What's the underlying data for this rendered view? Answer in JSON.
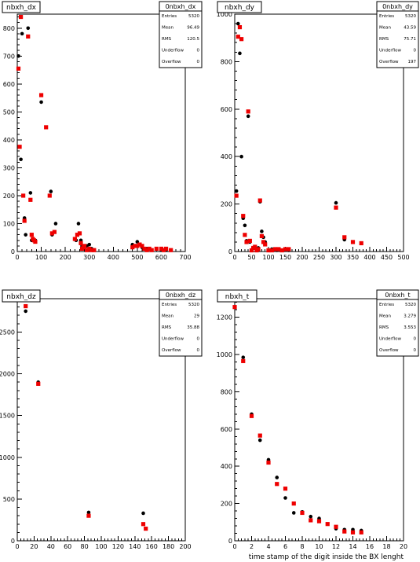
{
  "chart_data": [
    {
      "type": "scatter",
      "title": "nbxh_dx",
      "xlim": [
        0,
        700
      ],
      "ylim": [
        0,
        850
      ],
      "xticks": [
        0,
        100,
        200,
        300,
        400,
        500,
        600,
        700
      ],
      "yticks": [
        0,
        100,
        200,
        300,
        400,
        500,
        600,
        700,
        800
      ],
      "xlabel": "",
      "stats": {
        "name": "0nbxh_dx",
        "rows": [
          [
            "Entries",
            "5320"
          ],
          [
            "Mean",
            "96.49"
          ],
          [
            "RMS",
            "120.5"
          ],
          [
            "Underflow",
            "0"
          ],
          [
            "Overflow",
            "0"
          ]
        ]
      },
      "series": [
        {
          "color": "#000000",
          "marker": "circle",
          "points": [
            [
              5,
              700
            ],
            [
              15,
              330
            ],
            [
              20,
              780
            ],
            [
              30,
              120
            ],
            [
              35,
              60
            ],
            [
              45,
              800
            ],
            [
              55,
              210
            ],
            [
              60,
              40
            ],
            [
              75,
              40
            ],
            [
              100,
              535
            ],
            [
              140,
              215
            ],
            [
              145,
              60
            ],
            [
              160,
              100
            ],
            [
              245,
              40
            ],
            [
              255,
              100
            ],
            [
              265,
              40
            ],
            [
              270,
              20
            ],
            [
              290,
              20
            ],
            [
              300,
              25
            ],
            [
              310,
              10
            ],
            [
              480,
              25
            ],
            [
              500,
              35
            ],
            [
              520,
              15
            ],
            [
              540,
              10
            ],
            [
              560,
              5
            ],
            [
              600,
              5
            ],
            [
              620,
              5
            ]
          ]
        },
        {
          "color": "#ee0000",
          "marker": "square",
          "points": [
            [
              5,
              655
            ],
            [
              10,
              375
            ],
            [
              15,
              840
            ],
            [
              25,
              200
            ],
            [
              30,
              110
            ],
            [
              45,
              770
            ],
            [
              55,
              185
            ],
            [
              60,
              60
            ],
            [
              65,
              45
            ],
            [
              70,
              40
            ],
            [
              75,
              35
            ],
            [
              100,
              560
            ],
            [
              120,
              445
            ],
            [
              135,
              200
            ],
            [
              145,
              65
            ],
            [
              155,
              70
            ],
            [
              240,
              45
            ],
            [
              250,
              60
            ],
            [
              260,
              65
            ],
            [
              265,
              30
            ],
            [
              270,
              10
            ],
            [
              275,
              15
            ],
            [
              280,
              20
            ],
            [
              290,
              5
            ],
            [
              300,
              10
            ],
            [
              310,
              5
            ],
            [
              320,
              5
            ],
            [
              480,
              15
            ],
            [
              490,
              20
            ],
            [
              500,
              20
            ],
            [
              510,
              25
            ],
            [
              520,
              20
            ],
            [
              530,
              10
            ],
            [
              540,
              5
            ],
            [
              550,
              10
            ],
            [
              560,
              5
            ],
            [
              580,
              10
            ],
            [
              600,
              10
            ],
            [
              610,
              5
            ],
            [
              620,
              10
            ],
            [
              640,
              5
            ]
          ]
        }
      ]
    },
    {
      "type": "scatter",
      "title": "nbxh_dy",
      "xlim": [
        0,
        500
      ],
      "ylim": [
        0,
        1000
      ],
      "xticks": [
        0,
        50,
        100,
        150,
        200,
        250,
        300,
        350,
        400,
        450,
        500
      ],
      "yticks": [
        0,
        200,
        400,
        600,
        800,
        1000
      ],
      "xlabel": "",
      "stats": {
        "name": "0nbxh_dy",
        "rows": [
          [
            "Entries",
            "5320"
          ],
          [
            "Mean",
            "43.59"
          ],
          [
            "RMS",
            "75.71"
          ],
          [
            "Underflow",
            "0"
          ],
          [
            "Overflow",
            "197"
          ]
        ]
      },
      "series": [
        {
          "color": "#000000",
          "marker": "circle",
          "points": [
            [
              5,
              255
            ],
            [
              10,
              960
            ],
            [
              15,
              835
            ],
            [
              20,
              400
            ],
            [
              25,
              140
            ],
            [
              30,
              110
            ],
            [
              35,
              45
            ],
            [
              40,
              570
            ],
            [
              45,
              40
            ],
            [
              55,
              15
            ],
            [
              70,
              15
            ],
            [
              75,
              210
            ],
            [
              80,
              85
            ],
            [
              85,
              60
            ],
            [
              90,
              40
            ],
            [
              110,
              10
            ],
            [
              125,
              5
            ],
            [
              140,
              5
            ],
            [
              160,
              5
            ],
            [
              300,
              205
            ],
            [
              325,
              50
            ]
          ]
        },
        {
          "color": "#ee0000",
          "marker": "square",
          "points": [
            [
              5,
              235
            ],
            [
              10,
              905
            ],
            [
              15,
              945
            ],
            [
              20,
              895
            ],
            [
              25,
              150
            ],
            [
              30,
              70
            ],
            [
              35,
              40
            ],
            [
              40,
              590
            ],
            [
              45,
              45
            ],
            [
              50,
              5
            ],
            [
              55,
              15
            ],
            [
              60,
              20
            ],
            [
              65,
              5
            ],
            [
              70,
              10
            ],
            [
              75,
              215
            ],
            [
              80,
              65
            ],
            [
              85,
              40
            ],
            [
              90,
              30
            ],
            [
              100,
              5
            ],
            [
              110,
              5
            ],
            [
              120,
              10
            ],
            [
              130,
              10
            ],
            [
              140,
              5
            ],
            [
              150,
              10
            ],
            [
              160,
              10
            ],
            [
              300,
              185
            ],
            [
              325,
              60
            ],
            [
              350,
              40
            ],
            [
              375,
              35
            ]
          ]
        }
      ]
    },
    {
      "type": "scatter",
      "title": "nbxh_dz",
      "xlim": [
        0,
        200
      ],
      "ylim": [
        0,
        2900
      ],
      "xticks": [
        0,
        20,
        40,
        60,
        80,
        100,
        120,
        140,
        160,
        180,
        200
      ],
      "yticks": [
        0,
        500,
        1000,
        1500,
        2000,
        2500
      ],
      "xlabel": "",
      "stats": {
        "name": "0nbxh_dz",
        "rows": [
          [
            "Entries",
            "5320"
          ],
          [
            "Mean",
            "29"
          ],
          [
            "RMS",
            "35.88"
          ],
          [
            "Underflow",
            "0"
          ],
          [
            "Overflow",
            "0"
          ]
        ]
      },
      "series": [
        {
          "color": "#000000",
          "marker": "circle",
          "points": [
            [
              10,
              2750
            ],
            [
              25,
              1900
            ],
            [
              85,
              340
            ],
            [
              150,
              330
            ]
          ]
        },
        {
          "color": "#ee0000",
          "marker": "square",
          "points": [
            [
              10,
              2810
            ],
            [
              25,
              1880
            ],
            [
              85,
              300
            ],
            [
              150,
              200
            ],
            [
              153,
              145
            ]
          ]
        }
      ]
    },
    {
      "type": "scatter",
      "title": "nbxh_t",
      "xlim": [
        0,
        20
      ],
      "ylim": [
        0,
        1300
      ],
      "xticks": [
        0,
        2,
        4,
        6,
        8,
        10,
        12,
        14,
        16,
        18,
        20
      ],
      "yticks": [
        0,
        200,
        400,
        600,
        800,
        1000,
        1200
      ],
      "xlabel": "time stamp of the digit inside the BX lenght",
      "stats": {
        "name": "0nbxh_t",
        "rows": [
          [
            "Entries",
            "5320"
          ],
          [
            "Mean",
            "3.279"
          ],
          [
            "RMS",
            "3.553"
          ],
          [
            "Underflow",
            "0"
          ],
          [
            "Overflow",
            "0"
          ]
        ]
      },
      "series": [
        {
          "color": "#000000",
          "marker": "circle",
          "points": [
            [
              0,
              1255
            ],
            [
              1,
              985
            ],
            [
              2,
              680
            ],
            [
              3,
              540
            ],
            [
              4,
              435
            ],
            [
              5,
              340
            ],
            [
              6,
              230
            ],
            [
              7,
              150
            ],
            [
              8,
              155
            ],
            [
              9,
              130
            ],
            [
              10,
              120
            ],
            [
              11,
              90
            ],
            [
              12,
              65
            ],
            [
              13,
              60
            ],
            [
              14,
              60
            ],
            [
              15,
              55
            ]
          ]
        },
        {
          "color": "#ee0000",
          "marker": "square",
          "points": [
            [
              0,
              1255
            ],
            [
              1,
              965
            ],
            [
              2,
              670
            ],
            [
              3,
              565
            ],
            [
              4,
              420
            ],
            [
              5,
              305
            ],
            [
              6,
              280
            ],
            [
              7,
              200
            ],
            [
              8,
              150
            ],
            [
              9,
              110
            ],
            [
              10,
              105
            ],
            [
              11,
              90
            ],
            [
              12,
              75
            ],
            [
              13,
              50
            ],
            [
              14,
              45
            ],
            [
              15,
              45
            ]
          ]
        }
      ]
    }
  ]
}
